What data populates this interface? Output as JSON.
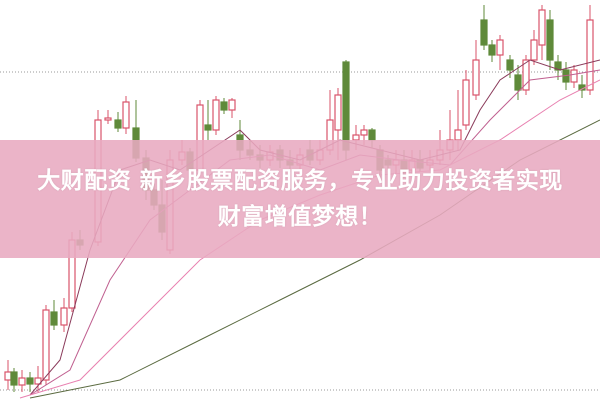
{
  "image": {
    "type": "candlestick-stock-chart-thumbnail",
    "colors": {
      "up": "#d9536a",
      "down": "#5f8a3a",
      "banner": "#e8aac0",
      "text": "#ffffff"
    }
  },
  "caption": {
    "line1": "大财配资 新乡股票配资服务，专业助力投资者实现",
    "line2": "财富增值梦想！"
  }
}
